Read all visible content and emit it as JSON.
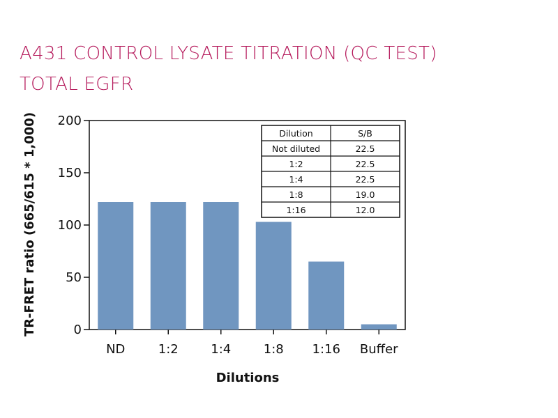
{
  "title_line1": "A431 CONTROL LYSATE TITRATION (QC TEST)",
  "title_line2": "TOTAL EGFR",
  "chart_data": {
    "type": "bar",
    "categories": [
      "ND",
      "1:2",
      "1:4",
      "1:8",
      "1:16",
      "Buffer"
    ],
    "values": [
      122,
      122,
      122,
      103,
      65,
      5
    ],
    "xlabel": "Dilutions",
    "ylabel": "TR-FRET ratio (665/615 * 1,000)",
    "ylim": [
      0,
      200
    ],
    "yticks": [
      0,
      50,
      100,
      150,
      200
    ],
    "bar_color": "#7096c0",
    "grid": false,
    "legend": "none"
  },
  "table": {
    "headers": [
      "Dilution",
      "S/B"
    ],
    "rows": [
      [
        "Not diluted",
        "22.5"
      ],
      [
        "1:2",
        "22.5"
      ],
      [
        "1:4",
        "22.5"
      ],
      [
        "1:8",
        "19.0"
      ],
      [
        "1:16",
        "12.0"
      ]
    ]
  }
}
